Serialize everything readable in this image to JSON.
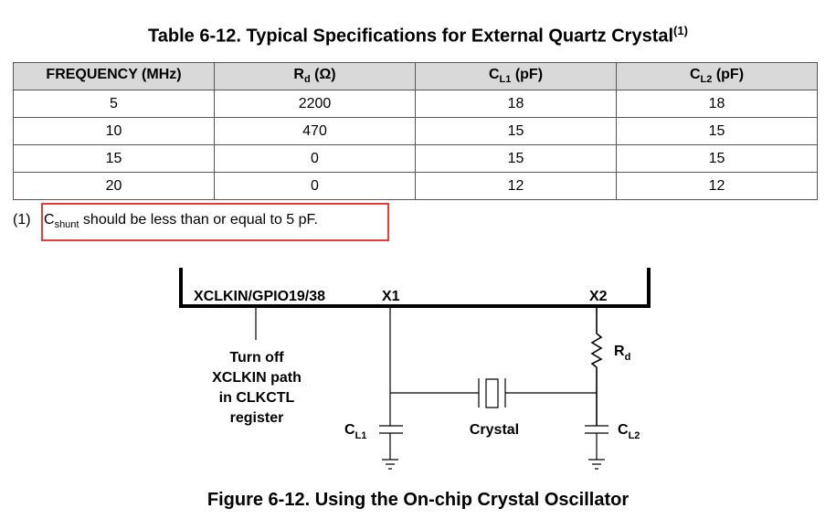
{
  "table": {
    "title": "Table 6-12. Typical Specifications for External Quartz Crystal",
    "title_note": "(1)",
    "headers": [
      {
        "main": "FREQUENCY (MHz)",
        "sub": "",
        "tail": ""
      },
      {
        "main": "R",
        "sub": "d",
        "tail": " (Ω)"
      },
      {
        "main": "C",
        "sub": "L1",
        "tail": " (pF)"
      },
      {
        "main": "C",
        "sub": "L2",
        "tail": " (pF)"
      }
    ],
    "rows": [
      [
        "5",
        "2200",
        "18",
        "18"
      ],
      [
        "10",
        "470",
        "15",
        "15"
      ],
      [
        "15",
        "0",
        "15",
        "15"
      ],
      [
        "20",
        "0",
        "12",
        "12"
      ]
    ]
  },
  "footnote": {
    "num": "(1)",
    "c": "C",
    "sub": "shunt",
    "text": " should be less than or equal to 5 pF."
  },
  "highlight_color": "#e83a3a",
  "figure": {
    "pin_label": "XCLKIN/GPIO19/38",
    "x1": "X1",
    "x2": "X2",
    "note_lines": [
      "Turn off",
      "XCLKIN path",
      "in CLKCTL",
      "register"
    ],
    "rd": "R",
    "rd_sub": "d",
    "crystal": "Crystal",
    "cl1": "C",
    "cl1_sub": "L1",
    "cl2": "C",
    "cl2_sub": "L2",
    "caption": "Figure 6-12. Using the On-chip Crystal Oscillator"
  }
}
